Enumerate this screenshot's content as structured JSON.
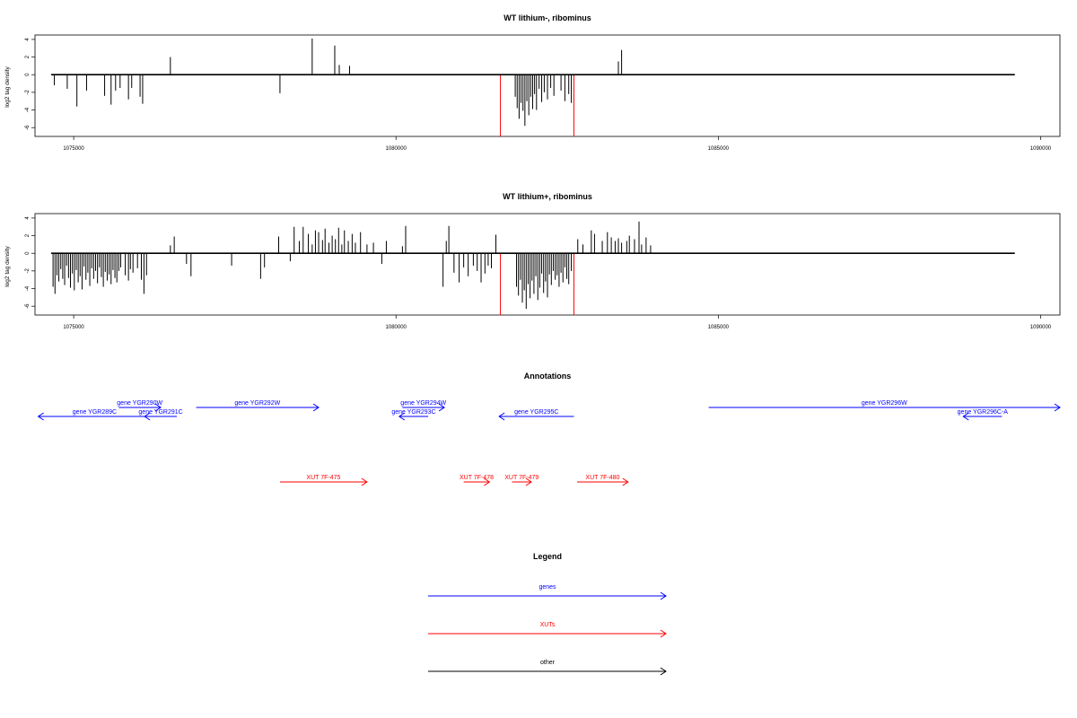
{
  "chart_data": [
    {
      "type": "bar",
      "title": "WT lithium-, ribominus",
      "ylabel": "log2 tag density",
      "xlim": [
        1074400,
        1090300
      ],
      "ylim": [
        -7,
        4.5
      ],
      "x_ticks": [
        1075000,
        1080000,
        1085000,
        1090000
      ],
      "y_ticks": [
        4,
        2,
        0,
        -2,
        -4,
        -6
      ],
      "baseline": {
        "from": 1074650,
        "to": 1089600
      },
      "markers": {
        "color": "#ff0000",
        "x": [
          1081620,
          1082760
        ],
        "value": -7
      },
      "values": [
        [
          1074700,
          -1.2
        ],
        [
          1074900,
          -1.6
        ],
        [
          1075050,
          -3.6
        ],
        [
          1075200,
          -1.8
        ],
        [
          1075480,
          -2.4
        ],
        [
          1075580,
          -3.4
        ],
        [
          1075650,
          -1.8
        ],
        [
          1075720,
          -1.5
        ],
        [
          1075850,
          -2.8
        ],
        [
          1075900,
          -1.5
        ],
        [
          1076030,
          -2.5
        ],
        [
          1076070,
          -3.3
        ],
        [
          1076500,
          2.0
        ],
        [
          1078200,
          -2.1
        ],
        [
          1078700,
          4.1
        ],
        [
          1079050,
          3.3
        ],
        [
          1079120,
          1.1
        ],
        [
          1079280,
          1.0
        ],
        [
          1081850,
          -2.5
        ],
        [
          1081880,
          -3.8
        ],
        [
          1081910,
          -5.0
        ],
        [
          1081940,
          -3.2
        ],
        [
          1081970,
          -4.1
        ],
        [
          1082000,
          -5.8
        ],
        [
          1082030,
          -3.0
        ],
        [
          1082060,
          -4.6
        ],
        [
          1082090,
          -2.5
        ],
        [
          1082120,
          -3.9
        ],
        [
          1082150,
          -2.2
        ],
        [
          1082180,
          -4.0
        ],
        [
          1082220,
          -1.6
        ],
        [
          1082260,
          -3.1
        ],
        [
          1082300,
          -2.0
        ],
        [
          1082350,
          -2.8
        ],
        [
          1082400,
          -1.5
        ],
        [
          1082450,
          -2.4
        ],
        [
          1082560,
          -1.8
        ],
        [
          1082620,
          -3.0
        ],
        [
          1082680,
          -2.2
        ],
        [
          1082720,
          -3.2
        ],
        [
          1083450,
          1.5
        ],
        [
          1083500,
          2.8
        ]
      ]
    },
    {
      "type": "bar",
      "title": "WT lithium+, ribominus",
      "ylabel": "log2 tag density",
      "xlim": [
        1074400,
        1090300
      ],
      "ylim": [
        -7,
        4.5
      ],
      "x_ticks": [
        1075000,
        1080000,
        1085000,
        1090000
      ],
      "y_ticks": [
        4,
        2,
        0,
        -2,
        -4,
        -6
      ],
      "baseline": {
        "from": 1074650,
        "to": 1089600
      },
      "markers": {
        "color": "#ff0000",
        "x": [
          1081620,
          1082760
        ],
        "value": -7
      },
      "values": [
        [
          1074680,
          -3.8
        ],
        [
          1074710,
          -4.6
        ],
        [
          1074740,
          -2.5
        ],
        [
          1074770,
          -3.2
        ],
        [
          1074800,
          -1.8
        ],
        [
          1074830,
          -2.9
        ],
        [
          1074860,
          -3.6
        ],
        [
          1074890,
          -1.4
        ],
        [
          1074920,
          -2.8
        ],
        [
          1074950,
          -3.9
        ],
        [
          1074980,
          -2.3
        ],
        [
          1075010,
          -4.2
        ],
        [
          1075040,
          -1.9
        ],
        [
          1075070,
          -3.3
        ],
        [
          1075100,
          -2.6
        ],
        [
          1075130,
          -4.1
        ],
        [
          1075160,
          -1.5
        ],
        [
          1075190,
          -3.0
        ],
        [
          1075220,
          -2.2
        ],
        [
          1075250,
          -3.7
        ],
        [
          1075280,
          -1.7
        ],
        [
          1075310,
          -2.9
        ],
        [
          1075340,
          -2.0
        ],
        [
          1075370,
          -3.4
        ],
        [
          1075400,
          -1.6
        ],
        [
          1075430,
          -2.7
        ],
        [
          1075460,
          -3.8
        ],
        [
          1075490,
          -2.1
        ],
        [
          1075520,
          -3.1
        ],
        [
          1075550,
          -2.4
        ],
        [
          1075580,
          -3.5
        ],
        [
          1075610,
          -1.9
        ],
        [
          1075640,
          -2.8
        ],
        [
          1075670,
          -3.3
        ],
        [
          1075700,
          -2.0
        ],
        [
          1075730,
          -1.6
        ],
        [
          1075800,
          -2.5
        ],
        [
          1075850,
          -3.1
        ],
        [
          1075880,
          -1.8
        ],
        [
          1075920,
          -2.2
        ],
        [
          1075990,
          -1.7
        ],
        [
          1076050,
          -3.0
        ],
        [
          1076090,
          -4.6
        ],
        [
          1076130,
          -2.5
        ],
        [
          1076500,
          0.9
        ],
        [
          1076560,
          1.9
        ],
        [
          1076750,
          -1.2
        ],
        [
          1076820,
          -2.6
        ],
        [
          1077450,
          -1.4
        ],
        [
          1077900,
          -2.9
        ],
        [
          1077960,
          -1.6
        ],
        [
          1078180,
          1.9
        ],
        [
          1078360,
          -0.9
        ],
        [
          1078420,
          3.0
        ],
        [
          1078500,
          1.4
        ],
        [
          1078560,
          3.0
        ],
        [
          1078640,
          2.2
        ],
        [
          1078700,
          1.0
        ],
        [
          1078750,
          2.6
        ],
        [
          1078800,
          2.4
        ],
        [
          1078860,
          1.5
        ],
        [
          1078900,
          2.8
        ],
        [
          1078960,
          1.2
        ],
        [
          1079010,
          2.0
        ],
        [
          1079060,
          1.6
        ],
        [
          1079110,
          2.9
        ],
        [
          1079160,
          1.0
        ],
        [
          1079200,
          2.6
        ],
        [
          1079260,
          1.4
        ],
        [
          1079320,
          2.2
        ],
        [
          1079370,
          1.2
        ],
        [
          1079450,
          2.4
        ],
        [
          1079550,
          1.0
        ],
        [
          1079650,
          1.2
        ],
        [
          1079780,
          -1.2
        ],
        [
          1079850,
          1.4
        ],
        [
          1080100,
          0.8
        ],
        [
          1080150,
          3.1
        ],
        [
          1080730,
          -3.8
        ],
        [
          1080780,
          1.4
        ],
        [
          1080820,
          3.1
        ],
        [
          1080900,
          -2.2
        ],
        [
          1080980,
          -3.3
        ],
        [
          1081050,
          -1.6
        ],
        [
          1081120,
          -2.6
        ],
        [
          1081200,
          -1.4
        ],
        [
          1081260,
          -2.0
        ],
        [
          1081320,
          -3.3
        ],
        [
          1081380,
          -2.3
        ],
        [
          1081430,
          -1.4
        ],
        [
          1081480,
          -1.7
        ],
        [
          1081550,
          2.1
        ],
        [
          1081870,
          -3.8
        ],
        [
          1081900,
          -4.8
        ],
        [
          1081930,
          -3.0
        ],
        [
          1081960,
          -5.6
        ],
        [
          1081990,
          -4.2
        ],
        [
          1082020,
          -6.3
        ],
        [
          1082050,
          -3.5
        ],
        [
          1082080,
          -5.1
        ],
        [
          1082110,
          -3.1
        ],
        [
          1082140,
          -4.6
        ],
        [
          1082170,
          -2.6
        ],
        [
          1082200,
          -5.3
        ],
        [
          1082230,
          -3.9
        ],
        [
          1082260,
          -2.3
        ],
        [
          1082290,
          -4.5
        ],
        [
          1082320,
          -3.2
        ],
        [
          1082350,
          -5.0
        ],
        [
          1082380,
          -2.4
        ],
        [
          1082410,
          -3.6
        ],
        [
          1082440,
          -2.0
        ],
        [
          1082470,
          -3.0
        ],
        [
          1082500,
          -2.5
        ],
        [
          1082530,
          -3.8
        ],
        [
          1082560,
          -2.2
        ],
        [
          1082590,
          -3.3
        ],
        [
          1082620,
          -1.6
        ],
        [
          1082650,
          -2.9
        ],
        [
          1082680,
          -3.5
        ],
        [
          1082720,
          -2.0
        ],
        [
          1082820,
          1.6
        ],
        [
          1082900,
          1.0
        ],
        [
          1083030,
          2.6
        ],
        [
          1083080,
          2.2
        ],
        [
          1083200,
          1.4
        ],
        [
          1083280,
          2.4
        ],
        [
          1083340,
          1.8
        ],
        [
          1083400,
          1.4
        ],
        [
          1083450,
          1.7
        ],
        [
          1083500,
          1.2
        ],
        [
          1083580,
          1.4
        ],
        [
          1083620,
          2.0
        ],
        [
          1083700,
          1.6
        ],
        [
          1083770,
          3.6
        ],
        [
          1083810,
          1.0
        ],
        [
          1083880,
          1.8
        ],
        [
          1083950,
          0.9
        ]
      ]
    }
  ],
  "annotations": {
    "title": "Annotations",
    "items": [
      {
        "label": "gene YGR289C",
        "color": "#0000ff",
        "dir": "left",
        "from": 1074450,
        "to": 1076200,
        "lane": 2
      },
      {
        "label": "gene YGR290W",
        "color": "#0000ff",
        "dir": "right",
        "from": 1075700,
        "to": 1076350,
        "lane": 1
      },
      {
        "label": "gene YGR291C",
        "color": "#0000ff",
        "dir": "left",
        "from": 1076100,
        "to": 1076600,
        "lane": 2
      },
      {
        "label": "gene YGR292W",
        "color": "#0000ff",
        "dir": "right",
        "from": 1076900,
        "to": 1078800,
        "lane": 1
      },
      {
        "label": "gene YGR293C",
        "color": "#0000ff",
        "dir": "left",
        "from": 1080050,
        "to": 1080500,
        "lane": 2
      },
      {
        "label": "gene YGR294W",
        "color": "#0000ff",
        "dir": "right",
        "from": 1080100,
        "to": 1080750,
        "lane": 1
      },
      {
        "label": "gene YGR295C",
        "color": "#0000ff",
        "dir": "left",
        "from": 1081600,
        "to": 1082760,
        "lane": 2
      },
      {
        "label": "gene YGR296W",
        "color": "#0000ff",
        "dir": "right",
        "from": 1084850,
        "to": 1090300,
        "lane": 1
      },
      {
        "label": "gene YGR296C-A",
        "color": "#0000ff",
        "dir": "left",
        "from": 1088800,
        "to": 1089400,
        "lane": 2
      },
      {
        "label": "XUT 7F-475",
        "color": "#ff0000",
        "dir": "right",
        "from": 1078200,
        "to": 1079550,
        "lane": 3
      },
      {
        "label": "XUT 7F-478",
        "color": "#ff0000",
        "dir": "right",
        "from": 1081050,
        "to": 1081450,
        "lane": 3
      },
      {
        "label": "XUT 7F-479",
        "color": "#ff0000",
        "dir": "right",
        "from": 1081800,
        "to": 1082100,
        "lane": 3
      },
      {
        "label": "XUT 7F-480",
        "color": "#ff0000",
        "dir": "right",
        "from": 1082810,
        "to": 1083600,
        "lane": 3
      }
    ]
  },
  "legend": {
    "title": "Legend",
    "items": [
      {
        "label": "genes",
        "color": "#0000ff"
      },
      {
        "label": "XUTs",
        "color": "#ff0000"
      },
      {
        "label": "other",
        "color": "#000000"
      }
    ]
  }
}
